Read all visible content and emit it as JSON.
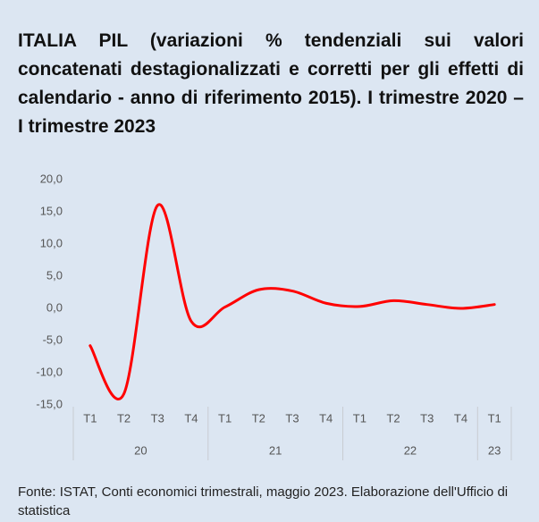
{
  "chart_data": {
    "type": "line",
    "title": "ITALIA PIL (variazioni % tendenziali sui valori concatenati destagionalizzati e corretti per gli effetti di calendario - anno di riferimento 2015). I trimestre 2020 – I trimestre 2023",
    "categories": [
      "T1",
      "T2",
      "T3",
      "T4",
      "T1",
      "T2",
      "T3",
      "T4",
      "T1",
      "T2",
      "T3",
      "T4",
      "T1"
    ],
    "groups": [
      {
        "label": "20",
        "size": 4
      },
      {
        "label": "21",
        "size": 4
      },
      {
        "label": "22",
        "size": 4
      },
      {
        "label": "23",
        "size": 1
      }
    ],
    "series": [
      {
        "name": "PIL",
        "color": "#ff0000",
        "values": [
          -5.8,
          -13.3,
          16.0,
          -2.0,
          0.2,
          2.9,
          2.7,
          0.8,
          0.3,
          1.2,
          0.6,
          0.0,
          0.6
        ]
      }
    ],
    "ylim": [
      -15,
      20
    ],
    "yticks": [
      {
        "value": -15,
        "label": "-15,0"
      },
      {
        "value": -10,
        "label": "-10,0"
      },
      {
        "value": -5,
        "label": "-5,0"
      },
      {
        "value": 0,
        "label": "0,0"
      },
      {
        "value": 5,
        "label": "5,0"
      },
      {
        "value": 10,
        "label": "10,0"
      },
      {
        "value": 15,
        "label": "15,0"
      },
      {
        "value": 20,
        "label": "20,0"
      }
    ],
    "grid": false,
    "source": "Fonte: ISTAT, Conti economici trimestrali, maggio 2023.  Elaborazione dell'Ufficio di statistica"
  }
}
